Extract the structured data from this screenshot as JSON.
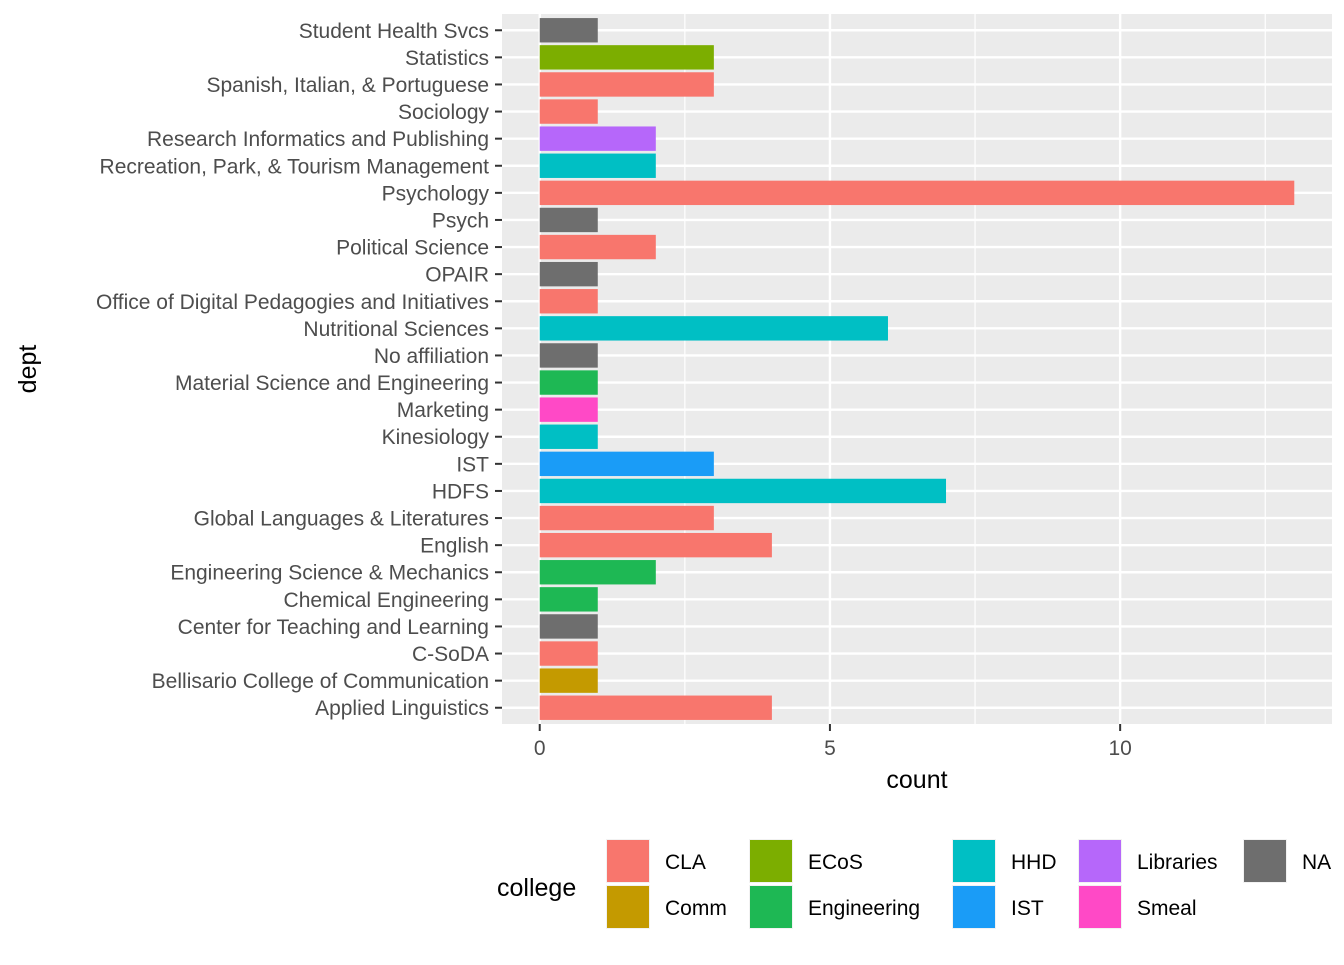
{
  "chart_data": {
    "type": "bar",
    "orientation": "horizontal",
    "xlabel": "count",
    "ylabel": "dept",
    "xlim": [
      -0.65,
      13.65
    ],
    "x_ticks": [
      0,
      5,
      10
    ],
    "x_tick_labels": [
      "0",
      "5",
      "10"
    ],
    "grid": true,
    "categories": [
      "Applied Linguistics",
      "Bellisario College of Communication",
      "C-SoDA",
      "Center for Teaching and Learning",
      "Chemical Engineering",
      "Engineering Science & Mechanics",
      "English",
      "Global Languages & Literatures",
      "HDFS",
      "IST",
      "Kinesiology",
      "Marketing",
      "Material Science and Engineering",
      "No affiliation",
      "Nutritional Sciences",
      "Office of Digital Pedagogies and Initiatives",
      "OPAIR",
      "Political Science",
      "Psych",
      "Psychology",
      "Recreation, Park, & Tourism Management",
      "Research Informatics and Publishing",
      "Sociology",
      "Spanish, Italian, & Portuguese",
      "Statistics",
      "Student Health Svcs"
    ],
    "values": [
      4,
      1,
      1,
      1,
      1,
      2,
      4,
      3,
      7,
      3,
      1,
      1,
      1,
      1,
      6,
      1,
      1,
      2,
      1,
      13,
      2,
      2,
      1,
      3,
      3,
      1
    ],
    "bar_college": [
      "CLA",
      "Comm",
      "CLA",
      "NA",
      "Engineering",
      "Engineering",
      "CLA",
      "CLA",
      "HHD",
      "IST",
      "HHD",
      "Smeal",
      "Engineering",
      "NA",
      "HHD",
      "CLA",
      "NA",
      "CLA",
      "NA",
      "CLA",
      "HHD",
      "Libraries",
      "CLA",
      "CLA",
      "ECoS",
      "NA"
    ],
    "legend": {
      "title": "college",
      "placement": "bottom",
      "entries": [
        {
          "name": "CLA",
          "color": "#F8766D"
        },
        {
          "name": "Comm",
          "color": "#C49A00"
        },
        {
          "name": "ECoS",
          "color": "#7CAE00"
        },
        {
          "name": "Engineering",
          "color": "#1EB854"
        },
        {
          "name": "HHD",
          "color": "#00BFC4"
        },
        {
          "name": "IST",
          "color": "#1A9CF7"
        },
        {
          "name": "Libraries",
          "color": "#B667FA"
        },
        {
          "name": "Smeal",
          "color": "#FF49C6"
        },
        {
          "name": "NA",
          "color": "#6E6E6E"
        }
      ]
    }
  }
}
